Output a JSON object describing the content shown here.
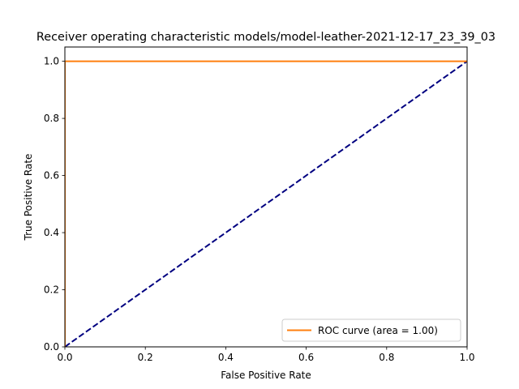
{
  "chart_data": {
    "type": "line",
    "title": "Receiver operating characteristic models/model-leather-2021-12-17_23_39_03",
    "xlabel": "False Positive Rate",
    "ylabel": "True Positive Rate",
    "xlim": [
      0.0,
      1.0
    ],
    "ylim": [
      0.0,
      1.05
    ],
    "x_ticks": [
      "0.0",
      "0.2",
      "0.4",
      "0.6",
      "0.8",
      "1.0"
    ],
    "y_ticks": [
      "0.0",
      "0.2",
      "0.4",
      "0.6",
      "0.8",
      "1.0"
    ],
    "grid": false,
    "legend_position": "lower-right",
    "series": [
      {
        "name": "ROC curve (area = 1.00)",
        "color": "#ff7f0e",
        "style": "solid",
        "x": [
          0.0,
          0.0,
          1.0
        ],
        "y": [
          0.0,
          1.0,
          1.0
        ]
      },
      {
        "color": "#000080",
        "style": "dashed",
        "x": [
          0.0,
          1.0
        ],
        "y": [
          0.0,
          1.0
        ]
      }
    ]
  }
}
